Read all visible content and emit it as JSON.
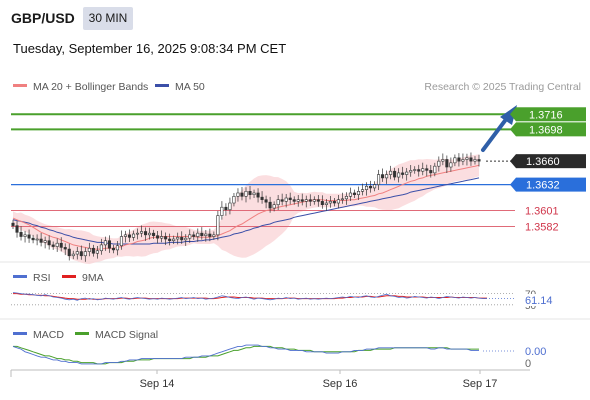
{
  "header": {
    "symbol": "GBP/USD",
    "timeframe": "30 MIN",
    "datetime": "Tuesday, September 16, 2025 9:08:34 PM CET"
  },
  "legend": {
    "ma20_label": "MA 20 + Bollinger Bands",
    "ma50_label": "MA 50",
    "credit": "Research © 2025 Trading Central"
  },
  "colors": {
    "resistance": "#4aa02c",
    "support": "#e06a78",
    "pivot": "#2a6fdb",
    "ma20": "#f08080",
    "ma50": "#3b4fa8",
    "bands": "#f9d3d6",
    "rsi": "#4f6fd0",
    "rsi_ma": "#e02020",
    "macd": "#4f6fd0",
    "macd_signal": "#4aa02c",
    "arrow": "#2f5fa8"
  },
  "chart_data": [
    {
      "type": "candlestick",
      "name": "price",
      "x_tick_labels": [
        "Sep 14",
        "Sep 16",
        "Sep 17"
      ],
      "y_range": [
        1.353,
        1.3745
      ],
      "levels": [
        {
          "value": 1.3716,
          "label": "1.3716",
          "kind": "resistance"
        },
        {
          "value": 1.3698,
          "label": "1.3698",
          "kind": "resistance"
        },
        {
          "value": 1.366,
          "label": "1.3660",
          "kind": "last"
        },
        {
          "value": 1.3632,
          "label": "1.3632",
          "kind": "pivot"
        },
        {
          "value": 1.3601,
          "label": "1.3601",
          "kind": "support"
        },
        {
          "value": 1.3582,
          "label": "1.3582",
          "kind": "support"
        }
      ],
      "close": [
        1.3583,
        1.3575,
        1.357,
        1.3572,
        1.3568,
        1.3566,
        1.3567,
        1.3563,
        1.3565,
        1.356,
        1.3558,
        1.3562,
        1.3557,
        1.3555,
        1.3547,
        1.3549,
        1.3552,
        1.3547,
        1.3552,
        1.3556,
        1.355,
        1.3553,
        1.356,
        1.3565,
        1.3556,
        1.3554,
        1.3559,
        1.357,
        1.3572,
        1.3569,
        1.3573,
        1.3574,
        1.3576,
        1.3572,
        1.3574,
        1.3571,
        1.3568,
        1.357,
        1.3567,
        1.3565,
        1.3567,
        1.3569,
        1.3566,
        1.3568,
        1.3572,
        1.357,
        1.3574,
        1.3571,
        1.3573,
        1.357,
        1.3572,
        1.3595,
        1.3605,
        1.3602,
        1.361,
        1.3618,
        1.3622,
        1.3618,
        1.3624,
        1.362,
        1.3622,
        1.3617,
        1.3614,
        1.3611,
        1.3604,
        1.3608,
        1.3614,
        1.3612,
        1.3616,
        1.3614,
        1.3612,
        1.3614,
        1.3612,
        1.3614,
        1.3612,
        1.3614,
        1.3612,
        1.3608,
        1.361,
        1.3612,
        1.361,
        1.3614,
        1.3615,
        1.3618,
        1.3622,
        1.362,
        1.3624,
        1.3626,
        1.363,
        1.3628,
        1.3632,
        1.3644,
        1.364,
        1.3644,
        1.3648,
        1.3641,
        1.3646,
        1.3644,
        1.3647,
        1.3649,
        1.365,
        1.3648,
        1.3651,
        1.3649,
        1.3646,
        1.3654,
        1.366,
        1.3662,
        1.3653,
        1.3658,
        1.3664,
        1.366,
        1.3662,
        1.3664,
        1.366,
        1.3662,
        1.366
      ],
      "ma20": [
        1.3592,
        1.359,
        1.3588,
        1.3586,
        1.3584,
        1.3581,
        1.3578,
        1.3575,
        1.3573,
        1.3571,
        1.3569,
        1.3568,
        1.3566,
        1.3564,
        1.3562,
        1.356,
        1.3559,
        1.3558,
        1.3557,
        1.3556,
        1.3555,
        1.3555,
        1.3555,
        1.3556,
        1.3556,
        1.3556,
        1.3557,
        1.3558,
        1.356,
        1.3561,
        1.3562,
        1.3564,
        1.3565,
        1.3566,
        1.3568,
        1.3569,
        1.3569,
        1.357,
        1.357,
        1.357,
        1.357,
        1.357,
        1.357,
        1.357,
        1.357,
        1.357,
        1.3569,
        1.3569,
        1.3569,
        1.3569,
        1.357,
        1.3571,
        1.3573,
        1.3575,
        1.3577,
        1.358,
        1.3583,
        1.3585,
        1.3588,
        1.3591,
        1.3594,
        1.3597,
        1.3599,
        1.3601,
        1.3602,
        1.3603,
        1.3605,
        1.3606,
        1.3607,
        1.3608,
        1.3609,
        1.361,
        1.3611,
        1.3612,
        1.3613,
        1.3614,
        1.3614,
        1.3614,
        1.3613,
        1.3613,
        1.3613,
        1.3613,
        1.3613,
        1.3613,
        1.3614,
        1.3614,
        1.3615,
        1.3616,
        1.3617,
        1.3618,
        1.3619,
        1.3621,
        1.3622,
        1.3624,
        1.3626,
        1.3628,
        1.363,
        1.3632,
        1.3634,
        1.3636,
        1.3637,
        1.3639,
        1.364,
        1.3642,
        1.3643,
        1.3644,
        1.3645,
        1.3646,
        1.3647,
        1.3648,
        1.3649,
        1.365,
        1.3651,
        1.3652,
        1.3653,
        1.3654,
        1.3655
      ],
      "ma50": [
        1.359,
        1.3589,
        1.3588,
        1.3587,
        1.3586,
        1.3584,
        1.3583,
        1.3581,
        1.358,
        1.3578,
        1.3577,
        1.3575,
        1.3574,
        1.3572,
        1.3571,
        1.3569,
        1.3568,
        1.3567,
        1.3566,
        1.3565,
        1.3564,
        1.3563,
        1.3563,
        1.3562,
        1.3562,
        1.3561,
        1.3561,
        1.3561,
        1.3561,
        1.3561,
        1.3561,
        1.3561,
        1.3561,
        1.3561,
        1.3561,
        1.3562,
        1.3562,
        1.3562,
        1.3562,
        1.3563,
        1.3563,
        1.3563,
        1.3563,
        1.3564,
        1.3564,
        1.3564,
        1.3565,
        1.3565,
        1.3566,
        1.3566,
        1.3567,
        1.3568,
        1.3569,
        1.357,
        1.3571,
        1.3573,
        1.3574,
        1.3575,
        1.3577,
        1.3578,
        1.358,
        1.3581,
        1.3583,
        1.3584,
        1.3585,
        1.3587,
        1.3588,
        1.3589,
        1.359,
        1.3591,
        1.3593,
        1.3594,
        1.3595,
        1.3596,
        1.3597,
        1.3598,
        1.3599,
        1.36,
        1.3601,
        1.3602,
        1.3603,
        1.3604,
        1.3605,
        1.3606,
        1.3607,
        1.3608,
        1.3609,
        1.361,
        1.3611,
        1.3612,
        1.3613,
        1.3614,
        1.3615,
        1.3616,
        1.3617,
        1.3618,
        1.3619,
        1.362,
        1.3621,
        1.3623,
        1.3624,
        1.3625,
        1.3626,
        1.3627,
        1.3628,
        1.3629,
        1.363,
        1.3631,
        1.3632,
        1.3633,
        1.3634,
        1.3635,
        1.3636,
        1.3637,
        1.3638,
        1.3639,
        1.364
      ]
    },
    {
      "type": "line",
      "name": "RSI",
      "legend": [
        "RSI",
        "9MA"
      ],
      "last_value": "61.14",
      "ticks": [
        "70",
        "50"
      ],
      "y_range": [
        30,
        80
      ],
      "rsi": [
        72,
        71,
        70,
        69,
        69,
        68,
        67,
        66,
        68,
        66,
        64,
        63,
        62,
        60,
        59,
        60,
        58,
        61,
        62,
        60,
        61,
        59,
        60,
        62,
        61,
        60,
        62,
        63,
        61,
        60,
        62,
        63,
        62,
        61,
        60,
        61,
        60,
        62,
        61,
        60,
        61,
        62,
        63,
        61,
        62,
        63,
        61,
        62,
        60,
        61,
        62,
        64,
        66,
        65,
        63,
        62,
        61,
        63,
        64,
        62,
        60,
        62,
        61,
        60,
        59,
        60,
        62,
        61,
        63,
        61,
        62,
        60,
        61,
        62,
        60,
        61,
        60,
        61,
        62,
        61,
        62,
        63,
        64,
        63,
        65,
        64,
        63,
        65,
        66,
        64,
        63,
        65,
        67,
        69,
        66,
        65,
        63,
        64,
        62,
        63,
        65,
        64,
        63,
        62,
        64,
        63,
        61,
        63,
        65,
        64,
        63,
        62,
        64,
        63,
        62,
        63,
        62,
        61,
        61
      ],
      "rsi_ma": [
        70,
        70,
        69,
        69,
        68,
        68,
        67,
        67,
        66,
        66,
        65,
        64,
        63,
        62,
        61,
        61,
        60,
        60,
        60,
        61,
        60,
        60,
        60,
        61,
        61,
        61,
        61,
        62,
        62,
        61,
        61,
        62,
        62,
        62,
        61,
        61,
        61,
        61,
        61,
        61,
        61,
        61,
        62,
        62,
        62,
        62,
        62,
        62,
        62,
        61,
        61,
        62,
        63,
        64,
        64,
        64,
        63,
        63,
        63,
        63,
        62,
        62,
        62,
        61,
        61,
        61,
        61,
        61,
        62,
        62,
        62,
        61,
        61,
        61,
        61,
        61,
        61,
        61,
        61,
        61,
        61,
        62,
        62,
        63,
        63,
        64,
        64,
        64,
        65,
        65,
        64,
        64,
        65,
        66,
        66,
        66,
        65,
        65,
        64,
        64,
        64,
        64,
        64,
        63,
        63,
        63,
        63,
        63,
        63,
        64,
        63,
        63,
        63,
        63,
        63,
        63,
        62,
        62,
        62
      ]
    },
    {
      "type": "line",
      "name": "MACD",
      "legend": [
        "MACD",
        "MACD Signal"
      ],
      "last_value": "0.00",
      "ticks": [
        "0"
      ],
      "y_range": [
        -0.0012,
        0.0008
      ],
      "macd": [
        0.0004,
        0.0003,
        0.0002,
        0.0,
        -0.0001,
        -0.0002,
        -0.0003,
        -0.0004,
        -0.0004,
        -0.0005,
        -0.0006,
        -0.0006,
        -0.0007,
        -0.0007,
        -0.0008,
        -0.0008,
        -0.0008,
        -0.0009,
        -0.0009,
        -0.0009,
        -0.0009,
        -0.0009,
        -0.0009,
        -0.0008,
        -0.0008,
        -0.0008,
        -0.0008,
        -0.0007,
        -0.0007,
        -0.0006,
        -0.0006,
        -0.0006,
        -0.0005,
        -0.0005,
        -0.0005,
        -0.0005,
        -0.0005,
        -0.0005,
        -0.0005,
        -0.0005,
        -0.0005,
        -0.0005,
        -0.0005,
        -0.0004,
        -0.0004,
        -0.0004,
        -0.0004,
        -0.0003,
        -0.0003,
        -0.0003,
        -0.0002,
        -0.0001,
        0.0,
        0.0001,
        0.0002,
        0.0003,
        0.0004,
        0.0004,
        0.0005,
        0.0005,
        0.0005,
        0.0005,
        0.0004,
        0.0004,
        0.0003,
        0.0003,
        0.0002,
        0.0002,
        0.0002,
        0.0001,
        0.0001,
        0.0001,
        0.0001,
        0.0,
        0.0,
        0.0,
        0.0,
        0.0,
        -0.0001,
        -0.0001,
        -0.0001,
        -0.0001,
        0.0,
        0.0,
        0.0,
        0.0001,
        0.0001,
        0.0001,
        0.0002,
        0.0002,
        0.0002,
        0.0003,
        0.0003,
        0.0003,
        0.0003,
        0.0003,
        0.0003,
        0.0003,
        0.0003,
        0.0003,
        0.0003,
        0.0003,
        0.0003,
        0.0003,
        0.0002,
        0.0002,
        0.0003,
        0.0003,
        0.0002,
        0.0002,
        0.0002,
        0.0002,
        0.0002,
        0.0002,
        0.0001,
        0.0001,
        0.0001
      ],
      "signal": [
        0.0004,
        0.0004,
        0.0003,
        0.0002,
        0.0001,
        0.0,
        -0.0001,
        -0.0002,
        -0.0003,
        -0.0003,
        -0.0004,
        -0.0005,
        -0.0005,
        -0.0006,
        -0.0006,
        -0.0007,
        -0.0007,
        -0.0008,
        -0.0008,
        -0.0008,
        -0.0008,
        -0.0009,
        -0.0009,
        -0.0009,
        -0.0008,
        -0.0008,
        -0.0008,
        -0.0008,
        -0.0007,
        -0.0007,
        -0.0007,
        -0.0006,
        -0.0006,
        -0.0006,
        -0.0006,
        -0.0005,
        -0.0005,
        -0.0005,
        -0.0005,
        -0.0005,
        -0.0005,
        -0.0005,
        -0.0005,
        -0.0005,
        -0.0005,
        -0.0004,
        -0.0004,
        -0.0004,
        -0.0004,
        -0.0003,
        -0.0003,
        -0.0003,
        -0.0002,
        -0.0001,
        0.0,
        0.0001,
        0.0001,
        0.0002,
        0.0003,
        0.0003,
        0.0004,
        0.0004,
        0.0004,
        0.0004,
        0.0004,
        0.0003,
        0.0003,
        0.0003,
        0.0002,
        0.0002,
        0.0002,
        0.0001,
        0.0001,
        0.0001,
        0.0001,
        0.0,
        0.0,
        0.0,
        0.0,
        0.0,
        0.0,
        0.0,
        0.0,
        0.0,
        0.0,
        0.0,
        0.0001,
        0.0001,
        0.0001,
        0.0001,
        0.0002,
        0.0002,
        0.0002,
        0.0002,
        0.0002,
        0.0003,
        0.0003,
        0.0003,
        0.0003,
        0.0003,
        0.0003,
        0.0003,
        0.0003,
        0.0003,
        0.0003,
        0.0003,
        0.0003,
        0.0003,
        0.0003,
        0.0002,
        0.0002,
        0.0002,
        0.0002,
        0.0002,
        0.0002,
        0.0002,
        0.0002
      ]
    }
  ]
}
